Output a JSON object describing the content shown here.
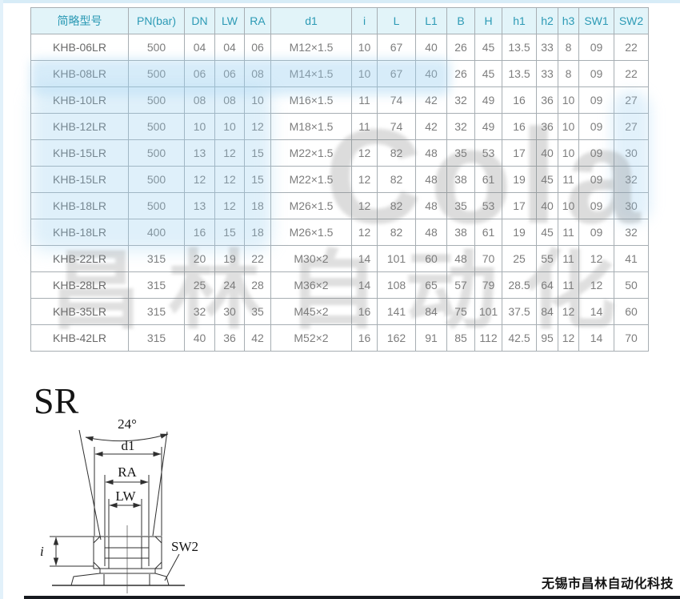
{
  "table": {
    "headers": [
      "简略型号",
      "PN(bar)",
      "DN",
      "LW",
      "RA",
      "d1",
      "i",
      "L",
      "L1",
      "B",
      "H",
      "h1",
      "h2",
      "h3",
      "SW1",
      "SW2"
    ],
    "rows": [
      [
        "KHB-06LR",
        "500",
        "04",
        "04",
        "06",
        "M12×1.5",
        "10",
        "67",
        "40",
        "26",
        "45",
        "13.5",
        "33",
        "8",
        "09",
        "22"
      ],
      [
        "KHB-08LR",
        "500",
        "06",
        "06",
        "08",
        "M14×1.5",
        "10",
        "67",
        "40",
        "26",
        "45",
        "13.5",
        "33",
        "8",
        "09",
        "22"
      ],
      [
        "KHB-10LR",
        "500",
        "08",
        "08",
        "10",
        "M16×1.5",
        "11",
        "74",
        "42",
        "32",
        "49",
        "16",
        "36",
        "10",
        "09",
        "27"
      ],
      [
        "KHB-12LR",
        "500",
        "10",
        "10",
        "12",
        "M18×1.5",
        "11",
        "74",
        "42",
        "32",
        "49",
        "16",
        "36",
        "10",
        "09",
        "27"
      ],
      [
        "KHB-15LR",
        "500",
        "13",
        "12",
        "15",
        "M22×1.5",
        "12",
        "82",
        "48",
        "35",
        "53",
        "17",
        "40",
        "10",
        "09",
        "30"
      ],
      [
        "KHB-15LR",
        "500",
        "12",
        "12",
        "15",
        "M22×1.5",
        "12",
        "82",
        "48",
        "38",
        "61",
        "19",
        "45",
        "11",
        "09",
        "32"
      ],
      [
        "KHB-18LR",
        "500",
        "13",
        "12",
        "18",
        "M26×1.5",
        "12",
        "82",
        "48",
        "35",
        "53",
        "17",
        "40",
        "10",
        "09",
        "30"
      ],
      [
        "KHB-18LR",
        "400",
        "16",
        "15",
        "18",
        "M26×1.5",
        "12",
        "82",
        "48",
        "38",
        "61",
        "19",
        "45",
        "11",
        "09",
        "32"
      ],
      [
        "KHB-22LR",
        "315",
        "20",
        "19",
        "22",
        "M30×2",
        "14",
        "101",
        "60",
        "48",
        "70",
        "25",
        "55",
        "11",
        "12",
        "41"
      ],
      [
        "KHB-28LR",
        "315",
        "25",
        "24",
        "28",
        "M36×2",
        "14",
        "108",
        "65",
        "57",
        "79",
        "28.5",
        "64",
        "11",
        "12",
        "50"
      ],
      [
        "KHB-35LR",
        "315",
        "32",
        "30",
        "35",
        "M45×2",
        "16",
        "141",
        "84",
        "75",
        "101",
        "37.5",
        "84",
        "12",
        "14",
        "60"
      ],
      [
        "KHB-42LR",
        "315",
        "40",
        "36",
        "42",
        "M52×2",
        "16",
        "162",
        "91",
        "85",
        "112",
        "42.5",
        "95",
        "12",
        "14",
        "70"
      ]
    ]
  },
  "diagram": {
    "section_label": "SR",
    "dim_angle": "24°",
    "dim_d1": "d1",
    "dim_ra": "RA",
    "dim_lw": "LW",
    "dim_i": "i",
    "dim_sw2": "SW2"
  },
  "watermark": {
    "latin": "Colair",
    "cjk": "昌林自动化"
  },
  "footer": {
    "company": "无锡市昌林自动化科技"
  },
  "colors": {
    "header_text": "#2c9ab5",
    "header_bg": "#e2f4f9",
    "grid_border": "#a7aeb3",
    "body_text": "#7d7d7d",
    "watermark_blue": "#96cdf0",
    "drawing_stroke": "#2f2f2f"
  }
}
